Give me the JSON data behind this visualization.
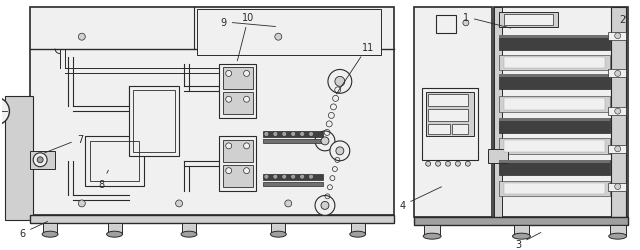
{
  "bg_color": "#ffffff",
  "lc": "#2a2a2a",
  "gray1": "#f0f0f0",
  "gray2": "#d0d0d0",
  "gray3": "#a0a0a0",
  "gray4": "#707070",
  "gray5": "#404040",
  "black": "#1a1a1a",
  "figsize": [
    6.4,
    2.51
  ],
  "dpi": 100
}
